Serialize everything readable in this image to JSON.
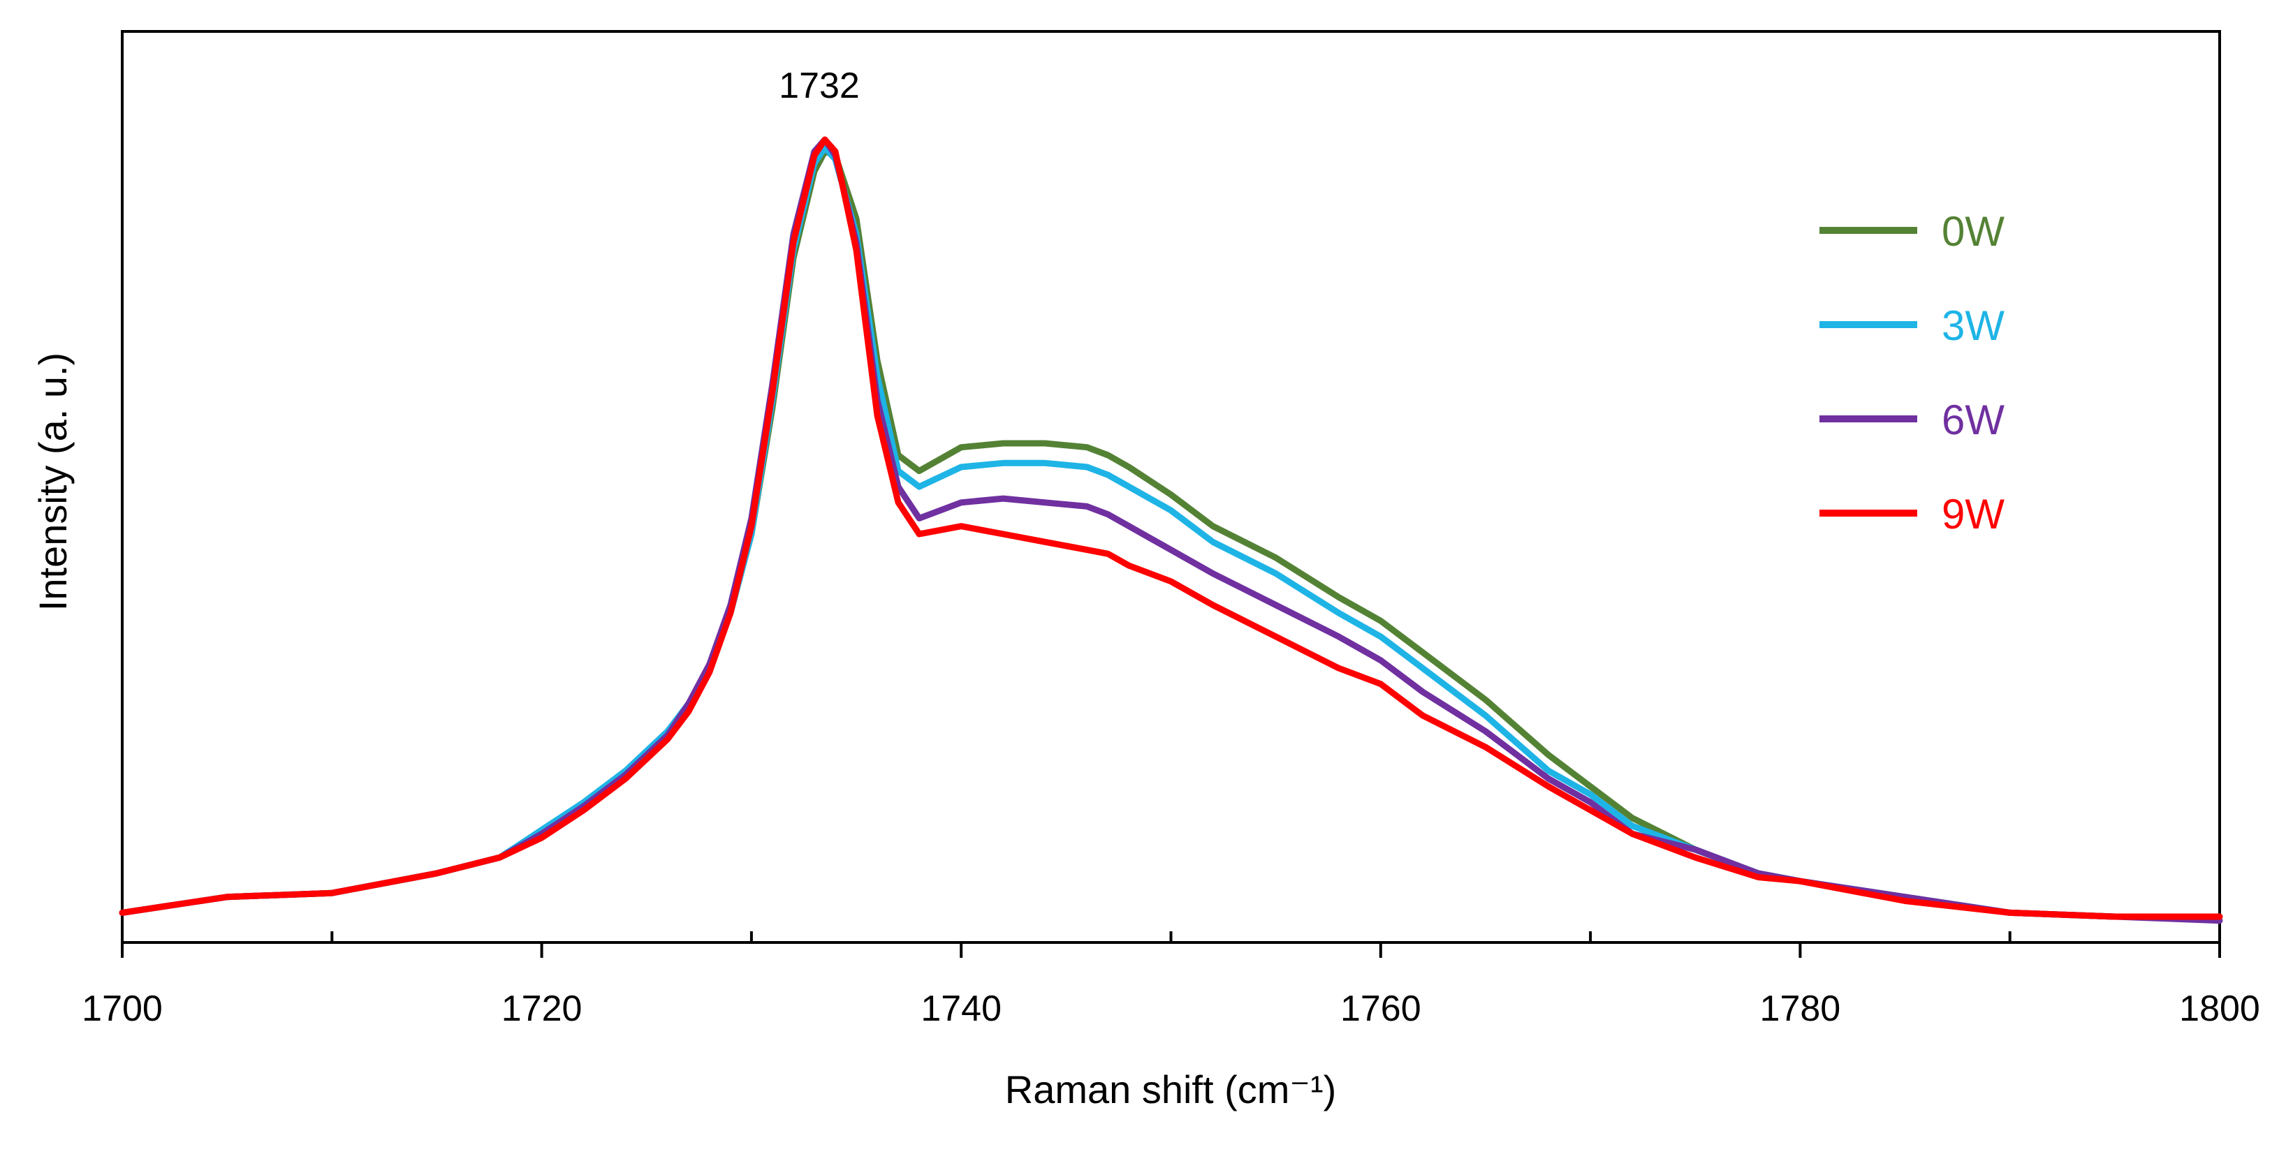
{
  "chart_data": {
    "type": "line",
    "title": "",
    "xlabel": "Raman shift (cm⁻¹)",
    "ylabel": "Intensity (a. u.)",
    "xlim": [
      1700,
      1800
    ],
    "ylim": [
      0,
      1.0
    ],
    "grid": false,
    "legend_position": "top-right",
    "x_ticks": [
      1700,
      1720,
      1740,
      1760,
      1780,
      1800
    ],
    "x_tick_labels": [
      "1700",
      "1720",
      "1740",
      "1760",
      "1780",
      "1800"
    ],
    "x_minor_ticks": [
      1710,
      1730,
      1750,
      1770,
      1790
    ],
    "annotations": [
      {
        "text": "1732",
        "x": 1733.5,
        "y": 1.0
      }
    ],
    "x": [
      1700,
      1705,
      1710,
      1715,
      1718,
      1720,
      1722,
      1724,
      1726,
      1727,
      1728,
      1729,
      1730,
      1731,
      1732,
      1733,
      1733.5,
      1734,
      1735,
      1736,
      1737,
      1738,
      1740,
      1742,
      1744,
      1746,
      1747,
      1748,
      1750,
      1752,
      1755,
      1758,
      1760,
      1762,
      1765,
      1768,
      1770,
      1772,
      1775,
      1778,
      1780,
      1785,
      1790,
      1795,
      1800
    ],
    "series": [
      {
        "name": "0W",
        "color": "#548235",
        "values": [
          0.02,
          0.04,
          0.045,
          0.07,
          0.09,
          0.12,
          0.155,
          0.195,
          0.245,
          0.28,
          0.33,
          0.4,
          0.5,
          0.66,
          0.85,
          0.96,
          0.985,
          0.98,
          0.9,
          0.72,
          0.6,
          0.58,
          0.61,
          0.615,
          0.615,
          0.61,
          0.6,
          0.585,
          0.55,
          0.51,
          0.47,
          0.42,
          0.39,
          0.35,
          0.29,
          0.22,
          0.18,
          0.14,
          0.1,
          0.07,
          0.06,
          0.04,
          0.02,
          0.015,
          0.015
        ]
      },
      {
        "name": "3W",
        "color": "#1EB4E6",
        "values": [
          0.02,
          0.04,
          0.045,
          0.07,
          0.09,
          0.125,
          0.16,
          0.2,
          0.25,
          0.285,
          0.33,
          0.4,
          0.5,
          0.67,
          0.86,
          0.97,
          0.99,
          0.975,
          0.88,
          0.7,
          0.58,
          0.56,
          0.585,
          0.59,
          0.59,
          0.585,
          0.575,
          0.56,
          0.53,
          0.49,
          0.45,
          0.4,
          0.37,
          0.33,
          0.27,
          0.2,
          0.17,
          0.13,
          0.1,
          0.07,
          0.06,
          0.04,
          0.02,
          0.015,
          0.015
        ]
      },
      {
        "name": "6W",
        "color": "#7030A0",
        "values": [
          0.02,
          0.04,
          0.045,
          0.07,
          0.09,
          0.12,
          0.155,
          0.195,
          0.245,
          0.285,
          0.335,
          0.41,
          0.52,
          0.69,
          0.88,
          0.985,
          1.0,
          0.98,
          0.87,
          0.67,
          0.56,
          0.52,
          0.54,
          0.545,
          0.54,
          0.535,
          0.525,
          0.51,
          0.48,
          0.45,
          0.41,
          0.37,
          0.34,
          0.3,
          0.25,
          0.19,
          0.16,
          0.12,
          0.1,
          0.07,
          0.06,
          0.04,
          0.02,
          0.015,
          0.01
        ]
      },
      {
        "name": "9W",
        "color": "#FF0000",
        "values": [
          0.02,
          0.04,
          0.045,
          0.07,
          0.09,
          0.115,
          0.15,
          0.19,
          0.24,
          0.275,
          0.325,
          0.4,
          0.51,
          0.68,
          0.87,
          0.98,
          1.0,
          0.985,
          0.86,
          0.65,
          0.54,
          0.5,
          0.51,
          0.5,
          0.49,
          0.48,
          0.475,
          0.46,
          0.44,
          0.41,
          0.37,
          0.33,
          0.31,
          0.27,
          0.23,
          0.18,
          0.15,
          0.12,
          0.09,
          0.065,
          0.06,
          0.035,
          0.02,
          0.015,
          0.015
        ]
      }
    ]
  }
}
